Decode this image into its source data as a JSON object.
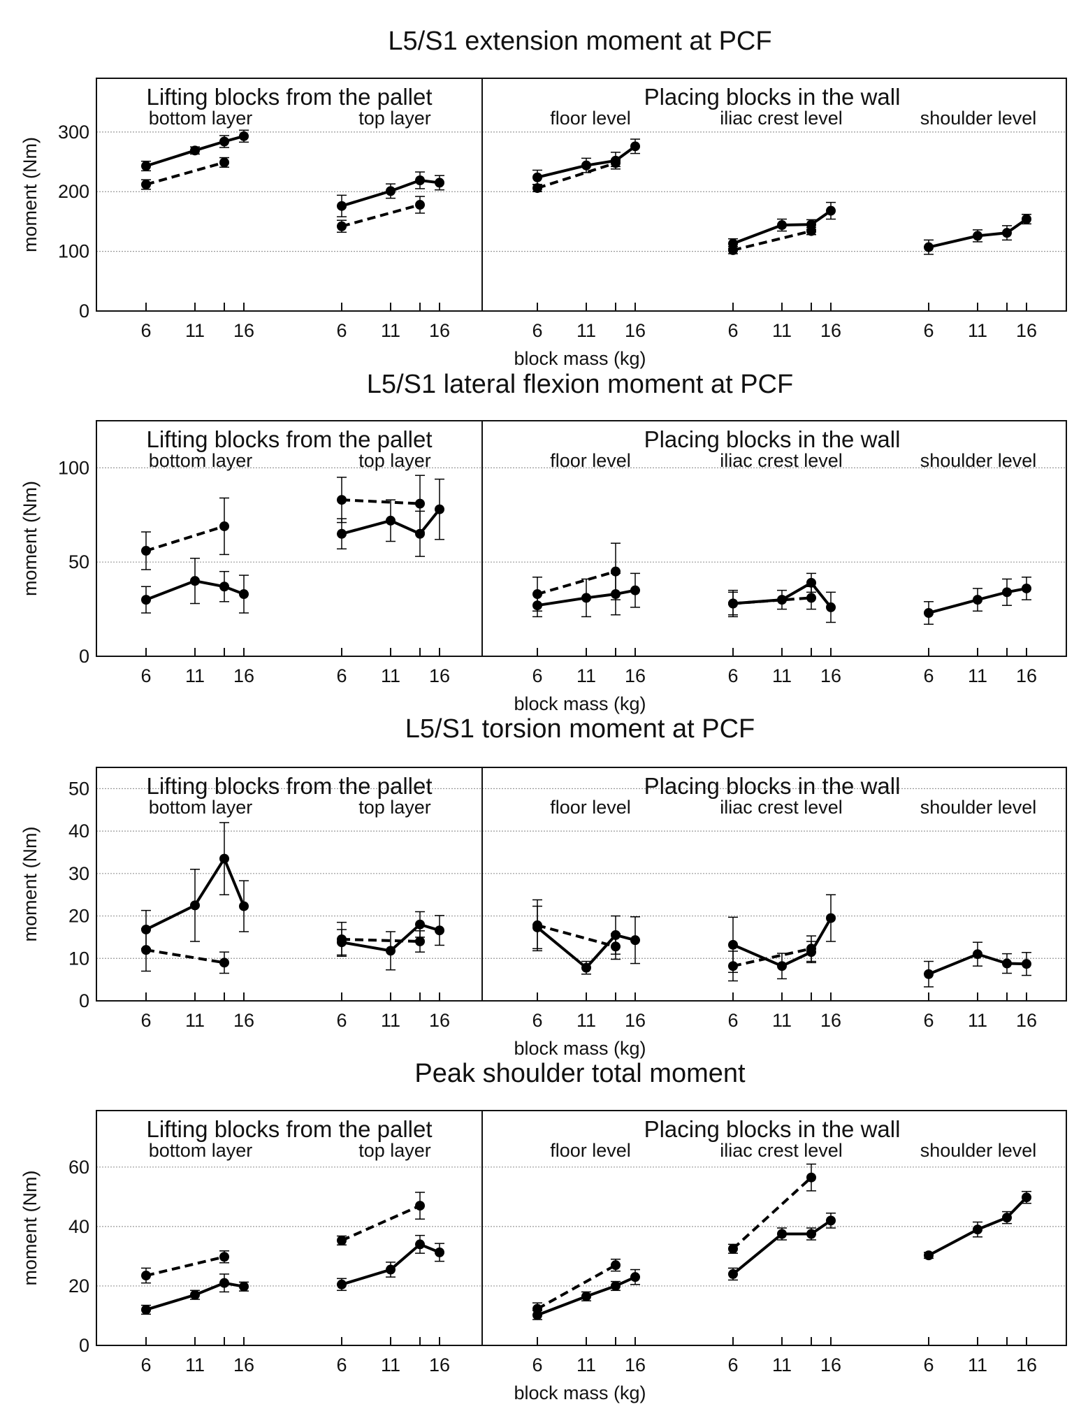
{
  "chart_data": [
    {
      "type": "line",
      "title": "L5/S1 extension moment at PCF",
      "ylabel": "moment (Nm)",
      "xlabel": "block mass (kg)",
      "ylim": [
        0,
        390
      ],
      "yticks": [
        0,
        100,
        200,
        300
      ],
      "grid": true,
      "group_titles": [
        "Lifting blocks from the pallet",
        "Placing blocks in the wall"
      ],
      "subgroups": [
        "bottom layer",
        "top layer",
        "floor level",
        "iliac crest level",
        "shoulder level"
      ],
      "x": [
        6,
        11,
        14,
        16
      ],
      "xtick_labels": [
        "6",
        "11",
        "",
        "16"
      ],
      "series": {
        "solid": [
          [
            [
              243,
              8
            ],
            [
              269,
              6
            ],
            [
              284,
              10
            ],
            [
              293,
              10
            ]
          ],
          [
            [
              176,
              18
            ],
            [
              201,
              12
            ],
            [
              219,
              14
            ],
            [
              215,
              12
            ]
          ],
          [
            [
              224,
              12
            ],
            [
              244,
              12
            ],
            [
              252,
              14
            ],
            [
              276,
              12
            ]
          ],
          [
            [
              113,
              8
            ],
            [
              144,
              10
            ],
            [
              145,
              8
            ],
            [
              168,
              14
            ]
          ],
          [
            [
              107,
              12
            ],
            [
              126,
              10
            ],
            [
              131,
              12
            ],
            [
              154,
              8
            ]
          ]
        ],
        "dashed": [
          [
            [
              212,
              8
            ],
            null,
            [
              249,
              8
            ],
            null
          ],
          [
            [
              142,
              10
            ],
            null,
            [
              178,
              14
            ],
            null
          ],
          [
            [
              206,
              6
            ],
            null,
            [
              248,
              6
            ],
            null
          ],
          [
            [
              102,
              6
            ],
            null,
            [
              134,
              6
            ],
            null
          ],
          [
            null,
            null,
            null,
            null
          ]
        ]
      }
    },
    {
      "type": "line",
      "title": "L5/S1 lateral flexion moment at PCF",
      "ylabel": "moment (Nm)",
      "xlabel": "block mass (kg)",
      "ylim": [
        0,
        125
      ],
      "yticks": [
        0,
        50,
        100
      ],
      "grid": true,
      "group_titles": [
        "Lifting blocks from the pallet",
        "Placing blocks in the wall"
      ],
      "subgroups": [
        "bottom layer",
        "top layer",
        "floor level",
        "iliac crest level",
        "shoulder level"
      ],
      "x": [
        6,
        11,
        14,
        16
      ],
      "xtick_labels": [
        "6",
        "11",
        "",
        "16"
      ],
      "series": {
        "solid": [
          [
            [
              30,
              7
            ],
            [
              40,
              12
            ],
            [
              37,
              8
            ],
            [
              33,
              10
            ]
          ],
          [
            [
              65,
              8
            ],
            [
              72,
              11
            ],
            [
              65,
              12
            ],
            [
              78,
              16
            ]
          ],
          [
            [
              27,
              6
            ],
            [
              31,
              10
            ],
            [
              33,
              11
            ],
            [
              35,
              9
            ]
          ],
          [
            [
              28,
              6
            ],
            [
              30,
              5
            ],
            [
              39,
              5
            ],
            [
              26,
              8
            ]
          ],
          [
            [
              23,
              6
            ],
            [
              30,
              6
            ],
            [
              34,
              7
            ],
            [
              36,
              6
            ]
          ]
        ],
        "dashed": [
          [
            [
              56,
              10
            ],
            null,
            [
              69,
              15
            ],
            null
          ],
          [
            [
              83,
              12
            ],
            null,
            [
              81,
              15
            ],
            null
          ],
          [
            [
              33,
              9
            ],
            null,
            [
              45,
              15
            ],
            null
          ],
          [
            [
              28,
              7
            ],
            null,
            [
              31,
              6
            ],
            null
          ],
          [
            null,
            null,
            null,
            null
          ]
        ]
      }
    },
    {
      "type": "line",
      "title": "L5/S1 torsion moment at PCF",
      "ylabel": "moment (Nm)",
      "xlabel": "block mass (kg)",
      "ylim": [
        0,
        55
      ],
      "yticks": [
        0,
        10,
        20,
        30,
        40,
        50
      ],
      "grid": true,
      "group_titles": [
        "Lifting blocks from the pallet",
        "Placing blocks in the wall"
      ],
      "subgroups": [
        "bottom layer",
        "top layer",
        "floor level",
        "iliac crest level",
        "shoulder level"
      ],
      "x": [
        6,
        11,
        14,
        16
      ],
      "xtick_labels": [
        "6",
        "11",
        "",
        "16"
      ],
      "series": {
        "solid": [
          [
            [
              16.8,
              4.5
            ],
            [
              22.5,
              8.5
            ],
            [
              33.5,
              8.5
            ],
            [
              22.3,
              6
            ]
          ],
          [
            [
              13.8,
              3
            ],
            [
              11.8,
              4.5
            ],
            [
              18,
              3
            ],
            [
              16.6,
              3.5
            ]
          ],
          [
            [
              17.3,
              5
            ],
            [
              7.8,
              1.5
            ],
            [
              15.5,
              4.5
            ],
            [
              14.3,
              5.5
            ]
          ],
          [
            [
              13.2,
              6.5
            ],
            [
              8.2,
              3
            ],
            [
              11.5,
              2.5
            ],
            [
              19.5,
              5.5
            ]
          ],
          [
            [
              6.3,
              3
            ],
            [
              11,
              2.8
            ],
            [
              8.8,
              2.3
            ],
            [
              8.7,
              2.7
            ]
          ]
        ],
        "dashed": [
          [
            [
              12,
              5
            ],
            null,
            [
              9,
              2.5
            ],
            null
          ],
          [
            [
              14.5,
              4
            ],
            null,
            [
              14,
              2.5
            ],
            null
          ],
          [
            [
              17.8,
              6
            ],
            null,
            [
              12.8,
              3
            ],
            null
          ],
          [
            [
              8.2,
              3.5
            ],
            null,
            [
              12.3,
              3
            ],
            null
          ],
          [
            null,
            null,
            null,
            null
          ]
        ]
      }
    },
    {
      "type": "line",
      "title": "Peak shoulder total moment",
      "ylabel": "moment (Nm)",
      "xlabel": "block mass (kg)",
      "ylim": [
        0,
        79
      ],
      "yticks": [
        0,
        20,
        40,
        60
      ],
      "grid": true,
      "group_titles": [
        "Lifting blocks from the pallet",
        "Placing blocks in the wall"
      ],
      "subgroups": [
        "bottom layer",
        "top layer",
        "floor level",
        "iliac crest level",
        "shoulder level"
      ],
      "x": [
        6,
        11,
        14,
        16
      ],
      "xtick_labels": [
        "6",
        "11",
        "",
        "16"
      ],
      "series": {
        "solid": [
          [
            [
              12,
              1.5
            ],
            [
              17,
              1.5
            ],
            [
              21,
              3
            ],
            [
              19.8,
              1.5
            ]
          ],
          [
            [
              20.5,
              2
            ],
            [
              25.5,
              2.5
            ],
            [
              34,
              3
            ],
            [
              31.3,
              3
            ]
          ],
          [
            [
              10.2,
              1.5
            ],
            [
              16.5,
              1.5
            ],
            [
              20,
              1.5
            ],
            [
              23,
              2.5
            ]
          ],
          [
            [
              24,
              2
            ],
            [
              37.5,
              2
            ],
            [
              37.5,
              2
            ],
            [
              42,
              2.5
            ]
          ],
          [
            [
              30.3,
              1
            ],
            [
              39,
              2.5
            ],
            [
              43,
              2
            ],
            [
              49.8,
              2
            ]
          ]
        ],
        "dashed": [
          [
            [
              23.5,
              2.5
            ],
            null,
            [
              29.8,
              2
            ],
            null
          ],
          [
            [
              35.3,
              1.5
            ],
            null,
            [
              47,
              4.5
            ],
            null
          ],
          [
            [
              12.3,
              2
            ],
            null,
            [
              27,
              2
            ],
            null
          ],
          [
            [
              32.5,
              1.5
            ],
            null,
            [
              56.5,
              4.5
            ],
            null
          ],
          [
            null,
            null,
            null,
            null
          ]
        ]
      }
    }
  ]
}
